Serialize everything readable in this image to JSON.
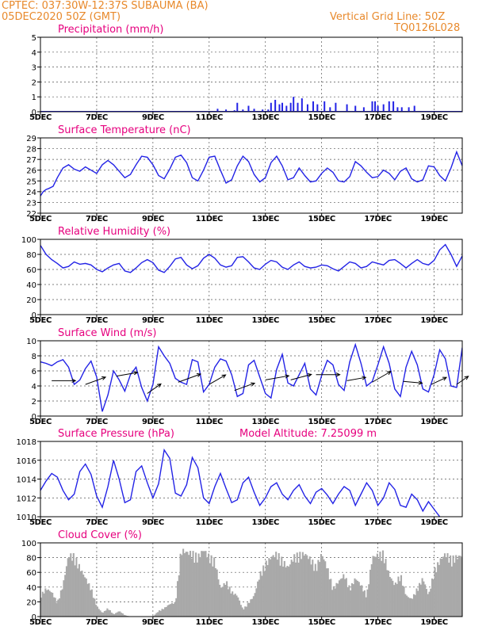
{
  "header": {
    "station": "CPTEC:   037:30W-12:37S   SUBAUMA (BA)",
    "date": "05DEC2020 50Z (GMT)",
    "grid_note": "Vertical Grid Line: 50Z",
    "code": "TQ0126L028"
  },
  "colors": {
    "header": "#e8892b",
    "title": "#e6007e",
    "line": "#2323e6",
    "cloud": "#a9a9a9",
    "frame": "#000000"
  },
  "x_axis": {
    "ticks": [
      "5DEC",
      "7DEC",
      "9DEC",
      "11DEC",
      "13DEC",
      "15DEC",
      "17DEC",
      "19DEC"
    ],
    "range_days": [
      5,
      20
    ]
  },
  "chart_data": [
    {
      "id": "precip",
      "type": "bar",
      "title": "Precipitation (mm/h)",
      "ylim": [
        0,
        5
      ],
      "yticks": [
        "0",
        "1",
        "2",
        "3",
        "4",
        "5"
      ],
      "x": [
        11.3,
        11.6,
        11.9,
        12.0,
        12.2,
        12.4,
        12.6,
        12.9,
        13.1,
        13.2,
        13.35,
        13.5,
        13.6,
        13.75,
        13.9,
        14.0,
        14.15,
        14.3,
        14.5,
        14.7,
        14.85,
        15.1,
        15.3,
        15.5,
        15.9,
        16.2,
        16.5,
        16.8,
        16.9,
        17.0,
        17.2,
        17.4,
        17.55,
        17.7,
        17.85,
        18.1,
        18.3
      ],
      "values": [
        0.2,
        0.15,
        0.1,
        0.6,
        0.15,
        0.4,
        0.2,
        0.15,
        0.15,
        0.6,
        0.8,
        0.5,
        0.6,
        0.4,
        0.6,
        1.0,
        0.6,
        0.9,
        0.5,
        0.7,
        0.5,
        0.7,
        0.3,
        0.6,
        0.5,
        0.4,
        0.3,
        0.7,
        0.7,
        0.4,
        0.5,
        0.7,
        0.7,
        0.3,
        0.3,
        0.3,
        0.4
      ]
    },
    {
      "id": "temp",
      "type": "line",
      "title": "Surface Temperature (nC)",
      "ylim": [
        22,
        29
      ],
      "yticks": [
        "22",
        "23",
        "24",
        "25",
        "26",
        "27",
        "28",
        "29"
      ],
      "x": [
        5.0,
        5.1,
        5.2,
        5.3,
        5.45,
        5.6,
        5.8,
        6.0,
        6.2,
        6.4,
        6.6,
        6.8,
        7.0,
        7.2,
        7.4,
        7.6,
        7.8,
        8.0,
        8.2,
        8.4,
        8.6,
        8.8,
        9.0,
        9.2,
        9.4,
        9.6,
        9.8,
        10.0,
        10.2,
        10.4,
        10.6,
        10.8,
        11.0,
        11.2,
        11.4,
        11.6,
        11.8,
        12.0,
        12.2,
        12.4,
        12.6,
        12.8,
        13.0,
        13.2,
        13.4,
        13.6,
        13.8,
        14.0,
        14.2,
        14.4,
        14.6,
        14.8,
        15.0,
        15.2,
        15.4,
        15.6,
        15.8,
        16.0,
        16.2,
        16.4,
        16.6,
        16.8,
        17.0,
        17.2,
        17.4,
        17.6,
        17.8,
        18.0,
        18.2,
        18.4,
        18.6,
        18.8,
        19.0,
        19.2,
        19.4,
        19.6,
        19.8,
        20.0
      ],
      "values": [
        23.6,
        24.0,
        24.2,
        24.3,
        24.5,
        25.3,
        26.2,
        26.5,
        26.1,
        25.9,
        26.3,
        26.0,
        25.7,
        26.5,
        26.9,
        26.5,
        25.9,
        25.3,
        25.6,
        26.5,
        27.3,
        27.2,
        26.5,
        25.5,
        25.2,
        26.1,
        27.2,
        27.4,
        26.7,
        25.3,
        25.0,
        26.0,
        27.2,
        27.3,
        26.0,
        24.8,
        25.1,
        26.4,
        27.3,
        26.8,
        25.6,
        24.9,
        25.3,
        26.7,
        27.3,
        26.4,
        25.1,
        25.3,
        26.2,
        25.5,
        24.9,
        25.0,
        25.7,
        26.2,
        25.8,
        25.0,
        24.9,
        25.4,
        26.8,
        26.4,
        25.8,
        25.3,
        25.4,
        26.0,
        25.7,
        25.1,
        25.9,
        26.2,
        25.2,
        24.9,
        25.1,
        26.4,
        26.3,
        25.5,
        25.0,
        26.2,
        27.7,
        26.4
      ]
    },
    {
      "id": "rh",
      "type": "line",
      "title": "Relative Humidity (%)",
      "ylim": [
        0,
        100
      ],
      "yticks": [
        "0",
        "20",
        "40",
        "60",
        "80",
        "100"
      ],
      "x": [
        5.0,
        5.2,
        5.4,
        5.6,
        5.8,
        6.0,
        6.2,
        6.4,
        6.6,
        6.8,
        7.0,
        7.2,
        7.4,
        7.6,
        7.8,
        8.0,
        8.2,
        8.4,
        8.6,
        8.8,
        9.0,
        9.2,
        9.4,
        9.6,
        9.8,
        10.0,
        10.2,
        10.4,
        10.6,
        10.8,
        11.0,
        11.2,
        11.4,
        11.6,
        11.8,
        12.0,
        12.2,
        12.4,
        12.6,
        12.8,
        13.0,
        13.2,
        13.4,
        13.6,
        13.8,
        14.0,
        14.2,
        14.4,
        14.6,
        14.8,
        15.0,
        15.2,
        15.4,
        15.6,
        15.8,
        16.0,
        16.2,
        16.4,
        16.6,
        16.8,
        17.0,
        17.2,
        17.4,
        17.6,
        17.8,
        18.0,
        18.2,
        18.4,
        18.6,
        18.8,
        19.0,
        19.2,
        19.4,
        19.6,
        19.8,
        20.0
      ],
      "values": [
        92,
        80,
        73,
        68,
        62,
        64,
        70,
        67,
        68,
        66,
        60,
        57,
        62,
        66,
        68,
        58,
        56,
        62,
        69,
        73,
        69,
        59,
        56,
        64,
        74,
        76,
        66,
        61,
        65,
        75,
        80,
        75,
        66,
        63,
        65,
        76,
        77,
        70,
        62,
        60,
        67,
        72,
        70,
        63,
        60,
        66,
        70,
        64,
        62,
        63,
        66,
        65,
        61,
        58,
        64,
        70,
        68,
        62,
        64,
        70,
        68,
        66,
        72,
        73,
        68,
        62,
        68,
        73,
        68,
        66,
        72,
        86,
        93,
        80,
        64,
        78
      ]
    },
    {
      "id": "wind",
      "type": "line",
      "title": "Surface Wind (m/s)",
      "ylim": [
        0,
        10
      ],
      "yticks": [
        "0",
        "2",
        "4",
        "6",
        "8",
        "10"
      ],
      "x": [
        5.0,
        5.2,
        5.4,
        5.6,
        5.8,
        6.0,
        6.2,
        6.4,
        6.6,
        6.8,
        7.0,
        7.2,
        7.4,
        7.6,
        7.8,
        8.0,
        8.2,
        8.4,
        8.6,
        8.8,
        9.0,
        9.2,
        9.4,
        9.6,
        9.8,
        10.0,
        10.2,
        10.4,
        10.6,
        10.8,
        11.0,
        11.2,
        11.4,
        11.6,
        11.8,
        12.0,
        12.2,
        12.4,
        12.6,
        12.8,
        13.0,
        13.2,
        13.4,
        13.6,
        13.8,
        14.0,
        14.2,
        14.4,
        14.6,
        14.8,
        15.0,
        15.2,
        15.4,
        15.6,
        15.8,
        16.0,
        16.2,
        16.4,
        16.6,
        16.8,
        17.0,
        17.2,
        17.4,
        17.6,
        17.8,
        18.0,
        18.2,
        18.4,
        18.6,
        18.8,
        19.0,
        19.2,
        19.4,
        19.6,
        19.8,
        20.0
      ],
      "values": [
        7.2,
        7.0,
        6.7,
        7.2,
        7.5,
        6.5,
        4.2,
        4.8,
        6.3,
        7.3,
        5.2,
        0.6,
        2.8,
        6.0,
        4.8,
        3.3,
        5.5,
        6.5,
        3.8,
        2.0,
        4.2,
        9.2,
        8.0,
        7.0,
        5.0,
        4.5,
        4.2,
        7.5,
        7.2,
        3.2,
        4.2,
        6.5,
        7.6,
        7.3,
        5.5,
        2.6,
        3.0,
        6.8,
        7.4,
        5.2,
        3.0,
        2.4,
        6.2,
        8.2,
        4.4,
        4.0,
        5.5,
        7.0,
        3.6,
        2.8,
        5.4,
        7.4,
        6.8,
        4.2,
        3.4,
        7.2,
        9.5,
        7.0,
        4.0,
        4.6,
        6.8,
        9.2,
        7.0,
        3.6,
        2.6,
        6.5,
        8.6,
        6.8,
        3.6,
        3.2,
        5.5,
        8.8,
        7.6,
        4.0,
        3.8,
        9.1
      ]
    },
    {
      "id": "wind-arrows",
      "type": "vector",
      "title": "",
      "x": [
        5.4,
        6.6,
        7.7,
        8.8,
        9.9,
        11.0,
        11.9,
        13.0,
        13.9,
        14.8,
        15.9,
        16.8,
        17.9,
        18.9,
        19.8
      ],
      "speed": [
        5,
        4.5,
        4.5,
        3.5,
        5,
        4,
        4.5,
        5,
        4.5,
        5,
        4,
        4.5,
        4,
        3.5,
        3
      ],
      "dir_from": [
        90,
        70,
        80,
        55,
        70,
        60,
        70,
        80,
        75,
        90,
        80,
        60,
        95,
        65,
        55
      ],
      "y_pos": [
        4.7,
        4.2,
        5.3,
        3.0,
        4.5,
        4.2,
        3.4,
        4.8,
        4.8,
        5.5,
        4.7,
        4.5,
        4.6,
        4.2,
        4.2
      ]
    },
    {
      "id": "pressure",
      "type": "line",
      "title": "Surface Pressure (hPa)",
      "extra_title": "Model Altitude: 7.25099 m",
      "ylim": [
        1010,
        1018
      ],
      "yticks": [
        "1010",
        "1012",
        "1014",
        "1016",
        "1018"
      ],
      "x": [
        5.0,
        5.2,
        5.4,
        5.6,
        5.8,
        6.0,
        6.2,
        6.4,
        6.6,
        6.8,
        7.0,
        7.2,
        7.4,
        7.6,
        7.8,
        8.0,
        8.2,
        8.4,
        8.6,
        8.8,
        9.0,
        9.2,
        9.4,
        9.6,
        9.8,
        10.0,
        10.2,
        10.4,
        10.6,
        10.8,
        11.0,
        11.2,
        11.4,
        11.6,
        11.8,
        12.0,
        12.2,
        12.4,
        12.6,
        12.8,
        13.0,
        13.2,
        13.4,
        13.6,
        13.8,
        14.0,
        14.2,
        14.4,
        14.6,
        14.8,
        15.0,
        15.2,
        15.4,
        15.6,
        15.8,
        16.0,
        16.2,
        16.4,
        16.6,
        16.8,
        17.0,
        17.2,
        17.4,
        17.6,
        17.8,
        18.0,
        18.2,
        18.4,
        18.6,
        18.8,
        19.0,
        19.2
      ],
      "values": [
        1012.8,
        1013.8,
        1014.6,
        1014.2,
        1012.8,
        1011.8,
        1012.4,
        1014.8,
        1015.6,
        1014.5,
        1012.2,
        1011.0,
        1013.2,
        1016.0,
        1014.0,
        1011.5,
        1011.8,
        1014.8,
        1015.4,
        1013.6,
        1012.0,
        1013.5,
        1017.1,
        1016.2,
        1012.5,
        1012.2,
        1013.4,
        1016.3,
        1015.2,
        1012.0,
        1011.4,
        1013.2,
        1014.6,
        1013.0,
        1011.5,
        1011.8,
        1013.6,
        1014.2,
        1012.6,
        1011.2,
        1012.0,
        1013.2,
        1013.6,
        1012.4,
        1011.8,
        1012.8,
        1013.4,
        1012.2,
        1011.4,
        1012.6,
        1013.0,
        1012.3,
        1011.4,
        1012.4,
        1013.2,
        1012.8,
        1011.2,
        1012.4,
        1013.6,
        1012.8,
        1011.2,
        1012.0,
        1013.6,
        1012.9,
        1011.2,
        1011.0,
        1012.4,
        1011.8,
        1010.6,
        1011.6,
        1010.8,
        1010.0
      ]
    },
    {
      "id": "cloud",
      "type": "area",
      "title": "Cloud Cover (%)",
      "ylim": [
        0,
        100
      ],
      "yticks": [
        "0",
        "20",
        "40",
        "60",
        "80",
        "100"
      ],
      "x": [
        5.0,
        5.2,
        5.4,
        5.6,
        5.8,
        6.0,
        6.2,
        6.4,
        6.6,
        6.8,
        7.0,
        7.2,
        7.4,
        7.6,
        7.8,
        8.0,
        8.2,
        8.4,
        8.6,
        8.8,
        9.0,
        9.2,
        9.4,
        9.6,
        9.8,
        10.0,
        10.2,
        10.4,
        10.6,
        10.8,
        11.0,
        11.2,
        11.4,
        11.6,
        11.8,
        12.0,
        12.2,
        12.4,
        12.6,
        12.8,
        13.0,
        13.2,
        13.4,
        13.6,
        13.8,
        14.0,
        14.2,
        14.4,
        14.6,
        14.8,
        15.0,
        15.2,
        15.4,
        15.6,
        15.8,
        16.0,
        16.2,
        16.4,
        16.6,
        16.8,
        17.0,
        17.2,
        17.4,
        17.6,
        17.8,
        18.0,
        18.2,
        18.4,
        18.6,
        18.8,
        19.0,
        19.2,
        19.4,
        19.6,
        19.8,
        20.0
      ],
      "values": [
        30,
        40,
        35,
        20,
        45,
        88,
        86,
        70,
        55,
        40,
        15,
        5,
        12,
        3,
        8,
        2,
        0,
        0,
        0,
        0,
        0,
        8,
        12,
        18,
        20,
        95,
        92,
        90,
        85,
        96,
        85,
        80,
        40,
        50,
        35,
        30,
        10,
        20,
        30,
        60,
        75,
        85,
        90,
        80,
        70,
        85,
        88,
        90,
        82,
        70,
        90,
        70,
        40,
        50,
        60,
        40,
        55,
        45,
        30,
        85,
        88,
        90,
        60,
        45,
        60,
        30,
        25,
        40,
        55,
        30,
        65,
        80,
        90,
        82,
        85,
        88
      ]
    }
  ]
}
